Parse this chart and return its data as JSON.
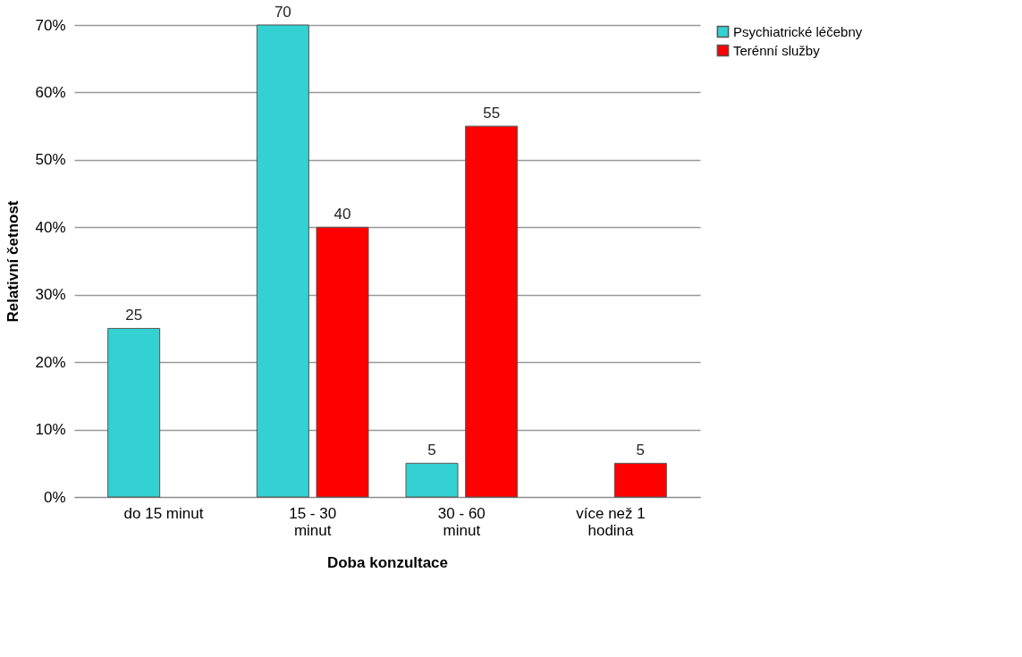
{
  "chart_data": {
    "type": "bar",
    "xlabel": "Doba konzultace",
    "ylabel": "Relativní četnost",
    "categories": [
      "do 15 minut",
      "15 - 30 minut",
      "30 - 60 minut",
      "více než 1 hodina"
    ],
    "series": [
      {
        "name": "Psychiatrické léčebny",
        "color": "#33d1d1",
        "values": [
          25,
          70,
          5,
          null
        ]
      },
      {
        "name": "Terénní služby",
        "color": "#ff0000",
        "values": [
          null,
          40,
          55,
          5
        ]
      }
    ],
    "ylim": [
      0,
      70
    ],
    "yticks": [
      {
        "value": 0,
        "label": "0%"
      },
      {
        "value": 10,
        "label": "10%"
      },
      {
        "value": 20,
        "label": "20%"
      },
      {
        "value": 30,
        "label": "30%"
      },
      {
        "value": 40,
        "label": "40%"
      },
      {
        "value": 50,
        "label": "50%"
      },
      {
        "value": 60,
        "label": "60%"
      },
      {
        "value": 70,
        "label": "70%"
      }
    ],
    "grid": "y",
    "legend": "right",
    "data_labels": true
  }
}
